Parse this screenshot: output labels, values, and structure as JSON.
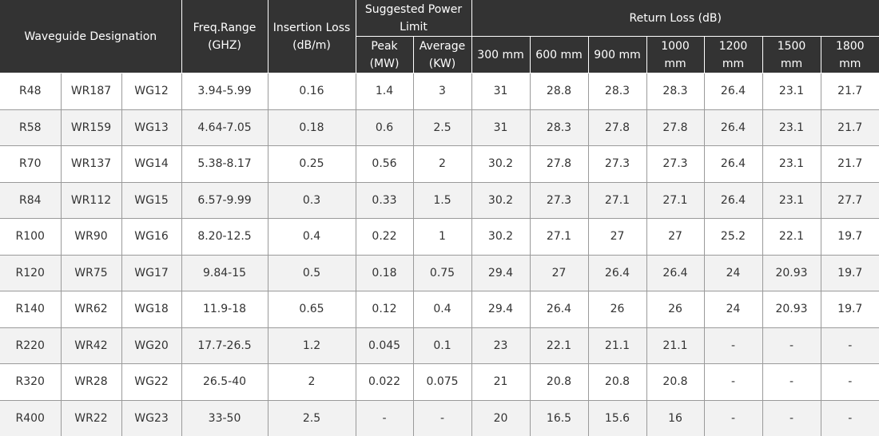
{
  "header": {
    "designation": "Waveguide Designation",
    "freq_range": "Freq.Range\n(GHZ)",
    "insertion_loss": "Insertion Loss\n(dB/m)",
    "power_limit": "Suggested Power\nLimit",
    "return_loss": "Return Loss (dB)",
    "peak": "Peak\n(MW)",
    "average": "Average\n(KW)",
    "return_loss_lengths": [
      "300 mm",
      "600 mm",
      "900 mm",
      "1000\nmm",
      "1200\nmm",
      "1500\nmm",
      "1800\nmm"
    ]
  },
  "rows": [
    [
      "R48",
      "WR187",
      "WG12",
      "3.94-5.99",
      "0.16",
      "1.4",
      "3",
      "31",
      "28.8",
      "28.3",
      "28.3",
      "26.4",
      "23.1",
      "21.7"
    ],
    [
      "R58",
      "WR159",
      "WG13",
      "4.64-7.05",
      "0.18",
      "0.6",
      "2.5",
      "31",
      "28.3",
      "27.8",
      "27.8",
      "26.4",
      "23.1",
      "21.7"
    ],
    [
      "R70",
      "WR137",
      "WG14",
      "5.38-8.17",
      "0.25",
      "0.56",
      "2",
      "30.2",
      "27.8",
      "27.3",
      "27.3",
      "26.4",
      "23.1",
      "21.7"
    ],
    [
      "R84",
      "WR112",
      "WG15",
      "6.57-9.99",
      "0.3",
      "0.33",
      "1.5",
      "30.2",
      "27.3",
      "27.1",
      "27.1",
      "26.4",
      "23.1",
      "27.7"
    ],
    [
      "R100",
      "WR90",
      "WG16",
      "8.20-12.5",
      "0.4",
      "0.22",
      "1",
      "30.2",
      "27.1",
      "27",
      "27",
      "25.2",
      "22.1",
      "19.7"
    ],
    [
      "R120",
      "WR75",
      "WG17",
      "9.84-15",
      "0.5",
      "0.18",
      "0.75",
      "29.4",
      "27",
      "26.4",
      "26.4",
      "24",
      "20.93",
      "19.7"
    ],
    [
      "R140",
      "WR62",
      "WG18",
      "11.9-18",
      "0.65",
      "0.12",
      "0.4",
      "29.4",
      "26.4",
      "26",
      "26",
      "24",
      "20.93",
      "19.7"
    ],
    [
      "R220",
      "WR42",
      "WG20",
      "17.7-26.5",
      "1.2",
      "0.045",
      "0.1",
      "23",
      "22.1",
      "21.1",
      "21.1",
      "-",
      "-",
      "-"
    ],
    [
      "R320",
      "WR28",
      "WG22",
      "26.5-40",
      "2",
      "0.022",
      "0.075",
      "21",
      "20.8",
      "20.8",
      "20.8",
      "-",
      "-",
      "-"
    ],
    [
      "R400",
      "WR22",
      "WG23",
      "33-50",
      "2.5",
      "-",
      "-",
      "20",
      "16.5",
      "15.6",
      "16",
      "-",
      "-",
      "-"
    ]
  ]
}
